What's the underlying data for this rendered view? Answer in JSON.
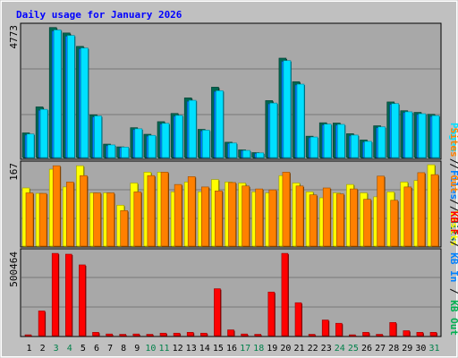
{
  "chart_data": [
    {
      "type": "bar",
      "title": "Daily usage for January 2026",
      "categories": [
        "1",
        "2",
        "3",
        "4",
        "5",
        "6",
        "7",
        "8",
        "9",
        "10",
        "11",
        "12",
        "13",
        "14",
        "15",
        "16",
        "17",
        "18",
        "19",
        "20",
        "21",
        "22",
        "23",
        "24",
        "25",
        "26",
        "27",
        "28",
        "29",
        "30",
        "31"
      ],
      "weekend_days": [
        "3",
        "4",
        "10",
        "11",
        "17",
        "18",
        "24",
        "25",
        "31"
      ],
      "panel": "hits",
      "ytick": "4773",
      "ylim": [
        0,
        4773
      ],
      "legend": [
        "Pages",
        "Files",
        "Hits"
      ],
      "colors": {
        "Hits": "#006650",
        "Files": "#0080ff",
        "Pages": "#00e0ff"
      },
      "series": [
        {
          "name": "Hits",
          "values": [
            900,
            1850,
            4750,
            4550,
            4060,
            1560,
            490,
            390,
            1090,
            850,
            1310,
            1610,
            2180,
            1030,
            2570,
            560,
            280,
            180,
            2080,
            3630,
            2770,
            780,
            1270,
            1260,
            870,
            640,
            1160,
            2030,
            1710,
            1650,
            1580
          ]
        },
        {
          "name": "Files",
          "values": [
            820,
            1720,
            4620,
            4430,
            3970,
            1480,
            430,
            360,
            1020,
            780,
            1220,
            1510,
            2050,
            970,
            2410,
            510,
            250,
            150,
            1960,
            3510,
            2650,
            720,
            1190,
            1180,
            790,
            560,
            1090,
            1940,
            1640,
            1570,
            1500
          ]
        },
        {
          "name": "Pages",
          "values": [
            860,
            1760,
            4660,
            4460,
            4000,
            1520,
            460,
            380,
            1050,
            810,
            1250,
            1540,
            2090,
            1000,
            2440,
            530,
            260,
            170,
            1990,
            3540,
            2680,
            750,
            1220,
            1210,
            820,
            590,
            1120,
            1970,
            1670,
            1600,
            1530
          ]
        }
      ]
    },
    {
      "type": "bar",
      "panel": "visits",
      "ytick": "167",
      "ylim": [
        0,
        167
      ],
      "legend": [
        "Sites",
        "Out",
        "Visits"
      ],
      "colors": {
        "Visits": "#ffff00",
        "Sites": "#ff8000"
      },
      "series": [
        {
          "name": "Visits",
          "values": [
            118,
            107,
            156,
            120,
            163,
            108,
            108,
            83,
            128,
            150,
            150,
            110,
            130,
            110,
            135,
            130,
            128,
            110,
            108,
            143,
            128,
            110,
            98,
            108,
            125,
            108,
            100,
            110,
            130,
            133,
            165
          ]
        },
        {
          "name": "Sites",
          "values": [
            108,
            107,
            163,
            130,
            143,
            108,
            108,
            72,
            110,
            143,
            150,
            125,
            141,
            120,
            112,
            129,
            122,
            116,
            114,
            150,
            122,
            104,
            118,
            106,
            116,
            95,
            142,
            93,
            120,
            149,
            145
          ]
        }
      ]
    },
    {
      "type": "bar",
      "panel": "kbytes",
      "ytick": "500464",
      "ylim": [
        0,
        500464
      ],
      "legend": [
        "KB F",
        "KB In",
        "KB Out"
      ],
      "colors": {
        "KB F": "#ff0000"
      },
      "series": [
        {
          "name": "KB F",
          "values": [
            5000,
            150000,
            500000,
            495000,
            430000,
            20000,
            10000,
            8000,
            10000,
            8000,
            15000,
            15000,
            20000,
            15000,
            285000,
            35000,
            10000,
            8000,
            265000,
            500000,
            200000,
            8000,
            95000,
            75000,
            5000,
            20000,
            8000,
            80000,
            30000,
            20000,
            20000
          ]
        }
      ]
    }
  ]
}
